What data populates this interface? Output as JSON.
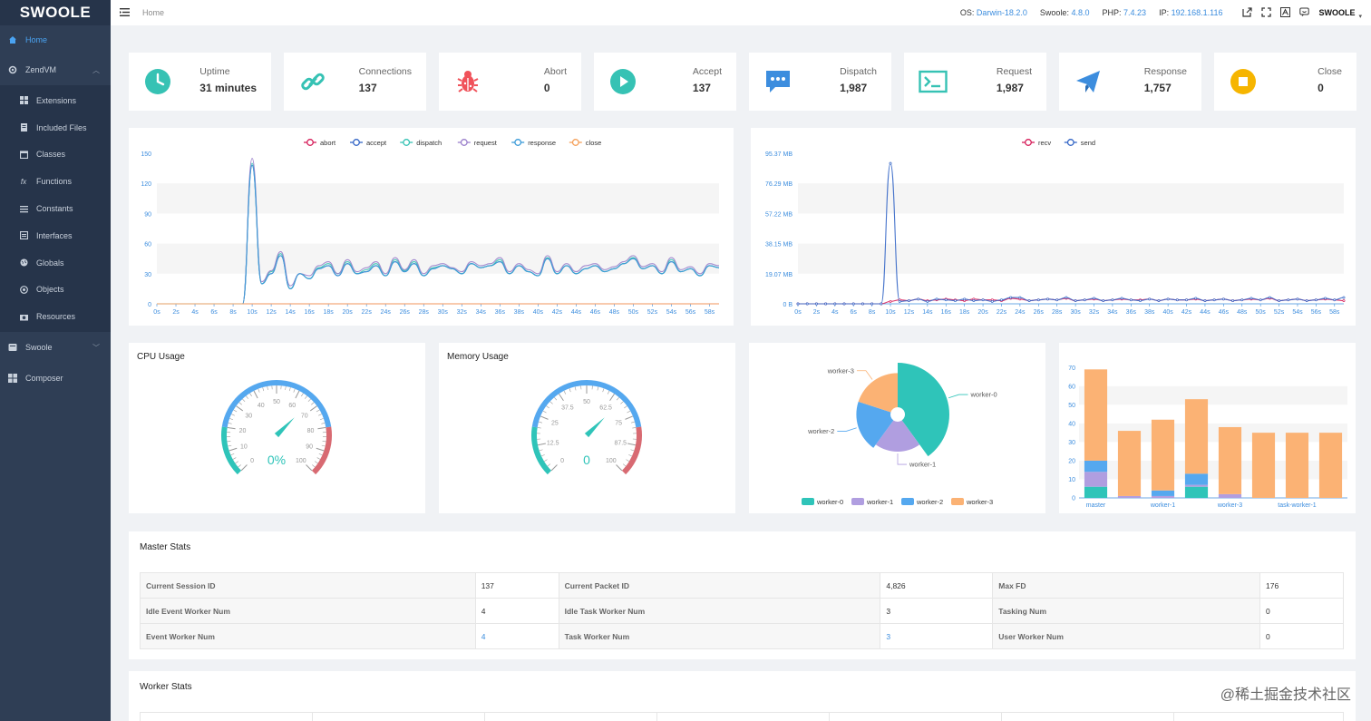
{
  "sidebar": {
    "logo": "SWOOLE",
    "home": "Home",
    "zendvm": "ZendVM",
    "subitems": [
      "Extensions",
      "Included Files",
      "Classes",
      "Functions",
      "Constants",
      "Interfaces",
      "Globals",
      "Objects",
      "Resources"
    ],
    "swoole": "Swoole",
    "composer": "Composer"
  },
  "topbar": {
    "breadcrumb": "Home",
    "os_label": "OS:",
    "os": "Darwin-18.2.0",
    "swoole_label": "Swoole:",
    "swoole": "4.8.0",
    "php_label": "PHP:",
    "php": "7.4.23",
    "ip_label": "IP:",
    "ip": "192.168.1.116",
    "logo": "SWOOLE"
  },
  "cards": [
    {
      "title": "Uptime",
      "value": "31 minutes",
      "color": "#36c2b4",
      "icon": "clock-icon"
    },
    {
      "title": "Connections",
      "value": "137",
      "color": "#36c2b4",
      "icon": "link-icon"
    },
    {
      "title": "Abort",
      "value": "0",
      "color": "#f0525a",
      "icon": "bug-icon"
    },
    {
      "title": "Accept",
      "value": "137",
      "color": "#36c2b4",
      "icon": "play-icon"
    },
    {
      "title": "Dispatch",
      "value": "1,987",
      "color": "#3c8dde",
      "icon": "chat-icon"
    },
    {
      "title": "Request",
      "value": "1,987",
      "color": "#36c2b4",
      "icon": "terminal-icon"
    },
    {
      "title": "Response",
      "value": "1,757",
      "color": "#3c8dde",
      "icon": "send-icon"
    },
    {
      "title": "Close",
      "value": "0",
      "color": "#f6b500",
      "icon": "stop-icon"
    }
  ],
  "gauges": {
    "cpu": {
      "title": "CPU Usage",
      "value": 0,
      "label": "0%",
      "ticks": [
        "0",
        "10",
        "20",
        "30",
        "40",
        "50",
        "60",
        "70",
        "80",
        "90",
        "100"
      ]
    },
    "memory": {
      "title": "Memory Usage",
      "value": 0,
      "label": "0",
      "ticks": [
        "0",
        "12.5",
        "25",
        "37.5",
        "50",
        "62.5",
        "75",
        "87.5",
        "100"
      ]
    }
  },
  "chart_data": [
    {
      "type": "line",
      "legend": [
        "abort",
        "accept",
        "dispatch",
        "request",
        "response",
        "close"
      ],
      "colors": [
        "#d61e5a",
        "#3466c6",
        "#36c2b4",
        "#9a7fcb",
        "#3c9bd8",
        "#f5a05a"
      ],
      "x_ticks": [
        "0s",
        "2s",
        "4s",
        "6s",
        "8s",
        "10s",
        "12s",
        "14s",
        "16s",
        "18s",
        "20s",
        "22s",
        "24s",
        "26s",
        "28s",
        "30s",
        "32s",
        "34s",
        "36s",
        "38s",
        "40s",
        "42s",
        "44s",
        "46s",
        "48s",
        "50s",
        "52s",
        "54s",
        "56s",
        "58s"
      ],
      "y_ticks": [
        "0",
        "30",
        "60",
        "90",
        "120",
        "150"
      ],
      "ylim": [
        0,
        150
      ],
      "series": [
        {
          "name": "abort",
          "values": [
            0,
            0,
            0,
            0,
            0,
            0,
            0,
            0,
            0,
            0,
            0,
            0,
            0,
            0,
            0,
            0,
            0,
            0,
            0,
            0,
            0,
            0,
            0,
            0,
            0,
            0,
            0,
            0,
            0,
            0,
            0,
            0,
            0,
            0,
            0,
            0,
            0,
            0,
            0,
            0,
            0,
            0,
            0,
            0,
            0,
            0,
            0,
            0,
            0,
            0,
            0,
            0,
            0,
            0,
            0,
            0,
            0,
            0,
            0,
            0
          ]
        },
        {
          "name": "accept",
          "values": [
            0,
            0,
            0,
            0,
            0,
            0,
            0,
            0,
            0,
            0,
            138,
            20,
            30,
            48,
            15,
            30,
            25,
            35,
            38,
            28,
            40,
            30,
            32,
            38,
            28,
            42,
            32,
            40,
            28,
            35,
            38,
            35,
            30,
            40,
            36,
            38,
            42,
            30,
            38,
            32,
            28,
            45,
            30,
            38,
            30,
            35,
            38,
            32,
            35,
            40,
            45,
            35,
            38,
            30,
            42,
            32,
            35,
            28,
            38,
            36
          ]
        },
        {
          "name": "dispatch",
          "values": [
            0,
            0,
            0,
            0,
            0,
            0,
            0,
            0,
            0,
            0,
            140,
            20,
            32,
            50,
            15,
            30,
            25,
            36,
            40,
            30,
            42,
            30,
            34,
            40,
            28,
            44,
            33,
            42,
            28,
            36,
            38,
            35,
            30,
            40,
            36,
            38,
            44,
            30,
            38,
            32,
            28,
            46,
            30,
            38,
            30,
            35,
            38,
            32,
            35,
            40,
            46,
            35,
            38,
            30,
            44,
            32,
            35,
            28,
            38,
            36
          ]
        },
        {
          "name": "request",
          "values": [
            0,
            0,
            0,
            0,
            0,
            0,
            0,
            0,
            0,
            0,
            145,
            22,
            33,
            52,
            18,
            30,
            28,
            38,
            42,
            30,
            44,
            32,
            36,
            42,
            30,
            46,
            34,
            44,
            30,
            38,
            40,
            36,
            32,
            42,
            38,
            40,
            46,
            32,
            40,
            34,
            30,
            48,
            32,
            40,
            32,
            38,
            40,
            34,
            37,
            42,
            48,
            37,
            40,
            32,
            46,
            34,
            37,
            30,
            40,
            38
          ]
        },
        {
          "name": "response",
          "values": [
            0,
            0,
            0,
            0,
            0,
            0,
            0,
            0,
            0,
            0,
            138,
            20,
            30,
            48,
            15,
            30,
            25,
            35,
            38,
            28,
            40,
            30,
            32,
            38,
            28,
            42,
            32,
            40,
            28,
            35,
            38,
            35,
            30,
            40,
            36,
            38,
            42,
            30,
            38,
            32,
            28,
            45,
            30,
            38,
            30,
            35,
            38,
            32,
            35,
            40,
            45,
            35,
            38,
            30,
            42,
            32,
            35,
            28,
            38,
            36
          ]
        },
        {
          "name": "close",
          "values": [
            0,
            0,
            0,
            0,
            0,
            0,
            0,
            0,
            0,
            0,
            0,
            0,
            0,
            0,
            0,
            0,
            0,
            0,
            0,
            0,
            0,
            0,
            0,
            0,
            0,
            0,
            0,
            0,
            0,
            0,
            0,
            0,
            0,
            0,
            0,
            0,
            0,
            0,
            0,
            0,
            0,
            0,
            0,
            0,
            0,
            0,
            0,
            0,
            0,
            0,
            0,
            0,
            0,
            0,
            0,
            0,
            0,
            0,
            0,
            0
          ]
        }
      ]
    },
    {
      "type": "line",
      "legend": [
        "recv",
        "send"
      ],
      "colors": [
        "#d61e5a",
        "#3466c6"
      ],
      "x_ticks": [
        "0s",
        "2s",
        "4s",
        "6s",
        "8s",
        "10s",
        "12s",
        "14s",
        "16s",
        "18s",
        "20s",
        "22s",
        "24s",
        "26s",
        "28s",
        "30s",
        "32s",
        "34s",
        "36s",
        "38s",
        "40s",
        "42s",
        "44s",
        "46s",
        "48s",
        "50s",
        "52s",
        "54s",
        "56s",
        "58s"
      ],
      "y_ticks": [
        "0 B",
        "19.07 MB",
        "38.15 MB",
        "57.22 MB",
        "76.29 MB",
        "95.37 MB"
      ],
      "ylim": [
        0,
        95.37
      ],
      "series": [
        {
          "name": "recv",
          "values": [
            0,
            0,
            0,
            0,
            0,
            0,
            0,
            0,
            0,
            0,
            1.5,
            2.5,
            2,
            3,
            2,
            2.5,
            3,
            2.5,
            2,
            3,
            2.5,
            2.5,
            2,
            3.5,
            3,
            2,
            2.5,
            3,
            2.5,
            3.5,
            2,
            2.5,
            3,
            2,
            2.5,
            3,
            2.5,
            2.5,
            3,
            2,
            3,
            2.5,
            2.5,
            3,
            2,
            2.5,
            3,
            2,
            2.5,
            3,
            2.5,
            3.5,
            2,
            2.5,
            3,
            2,
            2.5,
            3,
            2.5,
            2
          ]
        },
        {
          "name": "send",
          "values": [
            0,
            0,
            0,
            0,
            0,
            0,
            0,
            0,
            0,
            0,
            89,
            1.5,
            2,
            3,
            1.5,
            3,
            2.5,
            2,
            3,
            2,
            2.5,
            1.5,
            2.5,
            4,
            4,
            2,
            2.5,
            3,
            2.5,
            4,
            2,
            2.5,
            3.5,
            2,
            2.5,
            3.5,
            2.5,
            2,
            3,
            2,
            3,
            2.5,
            2.5,
            3.5,
            2,
            2.5,
            3,
            2,
            2.5,
            3.5,
            2.5,
            4,
            2,
            2.5,
            3,
            2,
            2.5,
            3.5,
            2.5,
            4
          ]
        }
      ]
    },
    {
      "type": "pie",
      "legend": [
        "worker-0",
        "worker-1",
        "worker-2",
        "worker-3"
      ],
      "colors": [
        "#2fc4b9",
        "#b09ee0",
        "#55a8ef",
        "#fbb274"
      ],
      "values": [
        40,
        20,
        20,
        20
      ],
      "radius_scale": [
        1.0,
        0.72,
        0.8,
        0.8
      ]
    },
    {
      "type": "bar",
      "categories": [
        "master",
        "",
        "worker-1",
        "",
        "worker-3",
        "",
        "task-worker-1",
        ""
      ],
      "y_ticks": [
        "0",
        "10",
        "20",
        "30",
        "40",
        "50",
        "60",
        "70"
      ],
      "ylim": [
        0,
        75
      ],
      "colors": [
        "#2fc4b9",
        "#b09ee0",
        "#55a8ef",
        "#fbb274"
      ],
      "series": [
        {
          "name": "worker-0",
          "values": [
            6,
            0,
            0,
            6,
            0,
            0,
            0,
            0
          ]
        },
        {
          "name": "worker-1",
          "values": [
            8,
            1,
            1,
            1,
            2,
            0,
            0,
            0
          ]
        },
        {
          "name": "worker-2",
          "values": [
            6,
            0,
            3,
            6,
            0,
            0,
            0,
            0
          ]
        },
        {
          "name": "worker-3",
          "values": [
            49,
            35,
            38,
            40,
            36,
            35,
            35,
            35
          ]
        }
      ]
    }
  ],
  "master_stats": {
    "title": "Master Stats",
    "rows": [
      [
        {
          "k": "Current Session ID",
          "v": "137"
        },
        {
          "k": "Current Packet ID",
          "v": "4,826"
        },
        {
          "k": "Max FD",
          "v": "176"
        }
      ],
      [
        {
          "k": "Idle Event Worker Num",
          "v": "4"
        },
        {
          "k": "Idle Task Worker Num",
          "v": "3"
        },
        {
          "k": "Tasking Num",
          "v": "0"
        }
      ],
      [
        {
          "k": "Event Worker Num",
          "v": "4",
          "link": true
        },
        {
          "k": "Task Worker Num",
          "v": "3",
          "link": true
        },
        {
          "k": "User Worker Num",
          "v": "0"
        }
      ]
    ]
  },
  "worker_stats": {
    "title": "Worker Stats"
  },
  "watermark": "@稀土掘金技术社区"
}
